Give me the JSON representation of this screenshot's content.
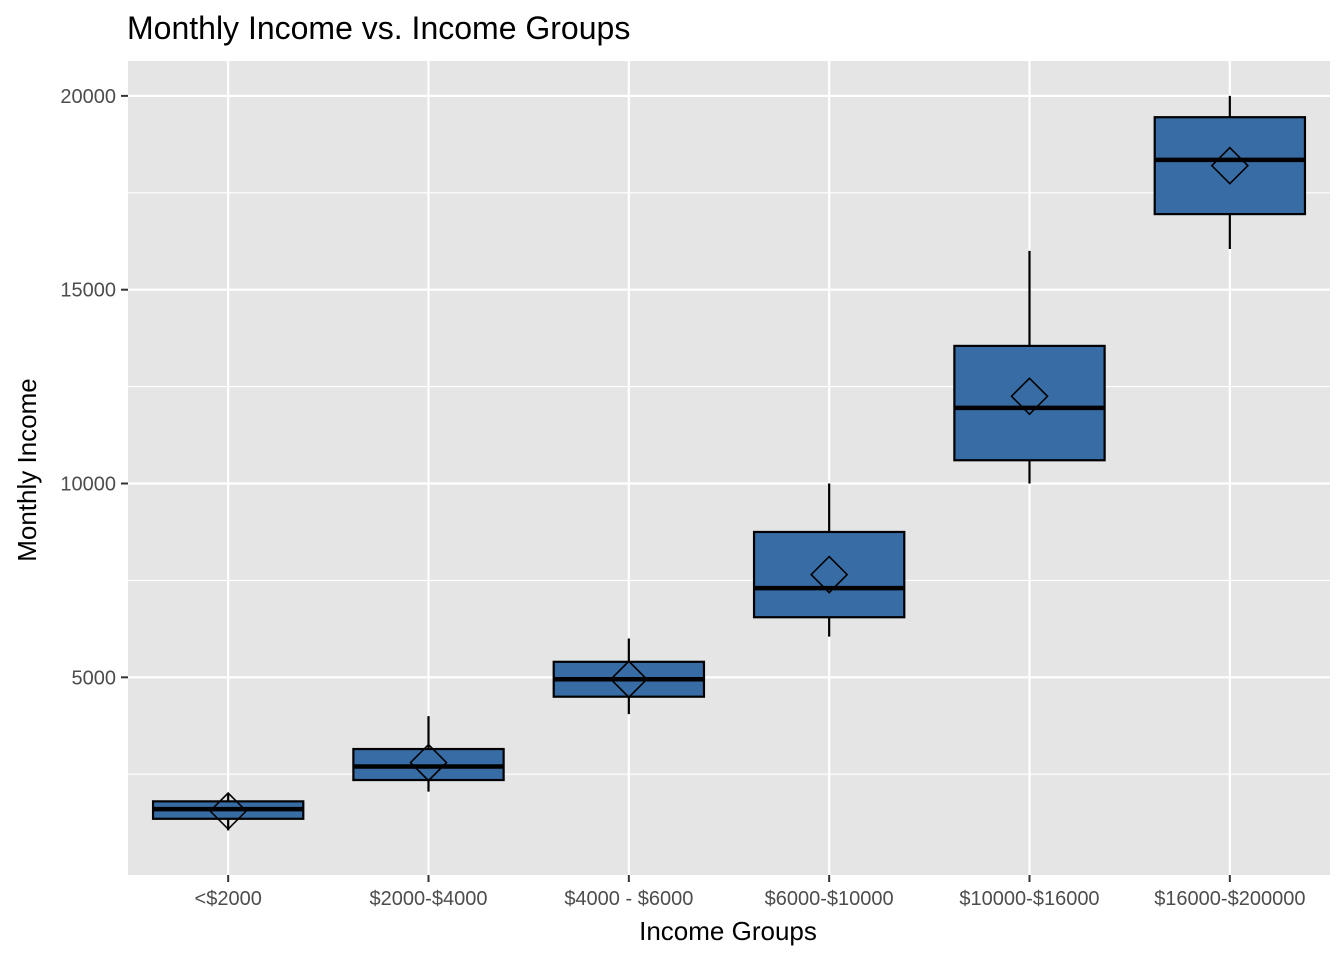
{
  "chart_data": {
    "type": "box",
    "title": "Monthly Income vs. Income Groups",
    "xlabel": "Income Groups",
    "ylabel": "Monthly Income",
    "categories": [
      "<$2000",
      "$2000-$4000",
      "$4000 - $6000",
      "$6000-$10000",
      "$10000-$16000",
      "$16000-$200000"
    ],
    "ylim": [
      -100,
      20900
    ],
    "y_ticks": [
      5000,
      10000,
      15000,
      20000
    ],
    "y_tick_labels": [
      "5000",
      "10000",
      "15000",
      "20000"
    ],
    "grid": true,
    "boxes": [
      {
        "whisker_low": 1050,
        "q1": 1350,
        "median": 1600,
        "q3": 1800,
        "whisker_high": 2000,
        "mean": 1550
      },
      {
        "whisker_low": 2050,
        "q1": 2350,
        "median": 2700,
        "q3": 3150,
        "whisker_high": 4000,
        "mean": 2800
      },
      {
        "whisker_low": 4050,
        "q1": 4500,
        "median": 4950,
        "q3": 5400,
        "whisker_high": 6000,
        "mean": 4950
      },
      {
        "whisker_low": 6050,
        "q1": 6550,
        "median": 7300,
        "q3": 8750,
        "whisker_high": 10000,
        "mean": 7650
      },
      {
        "whisker_low": 10000,
        "q1": 10600,
        "median": 11950,
        "q3": 13550,
        "whisker_high": 16000,
        "mean": 12250
      },
      {
        "whisker_low": 16050,
        "q1": 16950,
        "median": 18350,
        "q3": 19450,
        "whisker_high": 20000,
        "mean": 18200
      }
    ],
    "colors": {
      "box_fill": "#386ca5",
      "panel_bg": "#e5e5e5",
      "grid_line": "#ffffff",
      "outline": "#000000"
    }
  }
}
